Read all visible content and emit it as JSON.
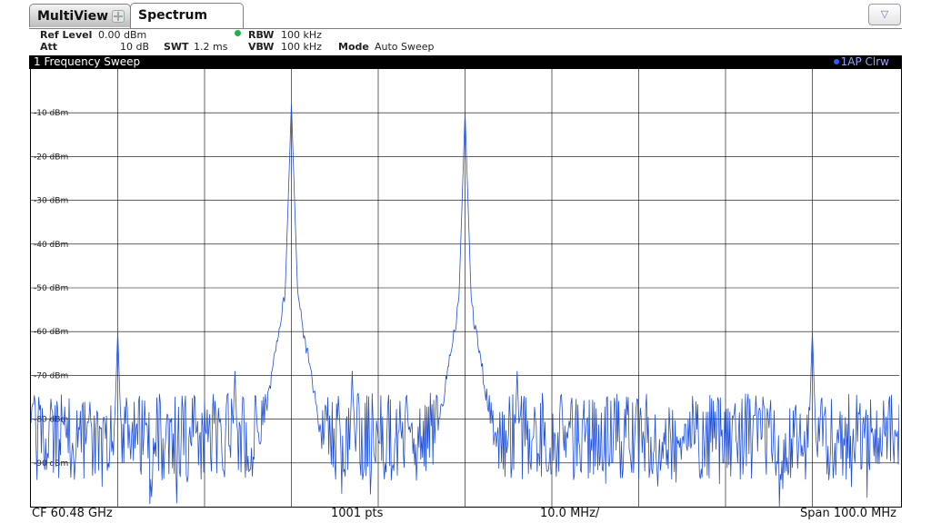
{
  "tabs": {
    "multiview": "MultiView",
    "spectrum": "Spectrum"
  },
  "dropdown_symbol": "▽",
  "settings": {
    "ref_level_label": "Ref Level",
    "ref_level_value": "0.00 dBm",
    "att_label": "Att",
    "att_value": "10 dB",
    "swt_label": "SWT",
    "swt_value": "1.2 ms",
    "rbw_label": "RBW",
    "rbw_value": "100 kHz",
    "vbw_label": "VBW",
    "vbw_value": "100 kHz",
    "mode_label": "Mode",
    "mode_value": "Auto Sweep"
  },
  "window": {
    "title": "1 Frequency Sweep",
    "trace_label": "1AP Clrw"
  },
  "footer": {
    "cf": "CF 60.48 GHz",
    "points": "1001 pts",
    "div": "10.0 MHz/",
    "span": "Span 100.0 MHz"
  },
  "colors": {
    "trace": "#1f4fd8",
    "grid": "#000000",
    "background": "#ffffff"
  },
  "chart_data": {
    "type": "line",
    "x_unit": "MHz offset from CF",
    "xlim": [
      -50,
      50
    ],
    "ylim": [
      -100,
      0
    ],
    "y_unit": "dBm",
    "grid": true,
    "y_tick_labels": [
      "-10 dBm",
      "-20 dBm",
      "-30 dBm",
      "-40 dBm",
      "-50 dBm",
      "-60 dBm",
      "-70 dBm",
      "-80 dBm",
      "-90 dBm"
    ],
    "noise_floor_dbm": -84,
    "noise_spread_db": 10,
    "points": 1001,
    "peaks": [
      {
        "x": -20,
        "y": -8
      },
      {
        "x": 0,
        "y": -10
      },
      {
        "x": -40,
        "y": -60
      },
      {
        "x": 40,
        "y": -60
      },
      {
        "x": -26.5,
        "y": -69
      },
      {
        "x": -13,
        "y": -69
      },
      {
        "x": 6,
        "y": -69
      }
    ]
  }
}
